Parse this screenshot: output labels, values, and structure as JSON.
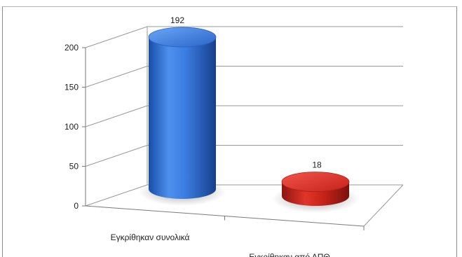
{
  "caption": "",
  "chart_data": {
    "type": "bar",
    "style": "3d-cylinder",
    "categories": [
      "Εγκρίθηκαν συνολικά",
      "Εγκρίθηκαν από ΑΠΘ"
    ],
    "values": [
      192,
      18
    ],
    "data_labels": [
      "192",
      "18"
    ],
    "colors": [
      "#2f6fd6",
      "#d42a1f"
    ],
    "ylim": [
      0,
      200
    ],
    "yticks": [
      0,
      50,
      100,
      150,
      200
    ],
    "grid": true,
    "legend": "none",
    "title": "",
    "xlabel": "",
    "ylabel": ""
  }
}
